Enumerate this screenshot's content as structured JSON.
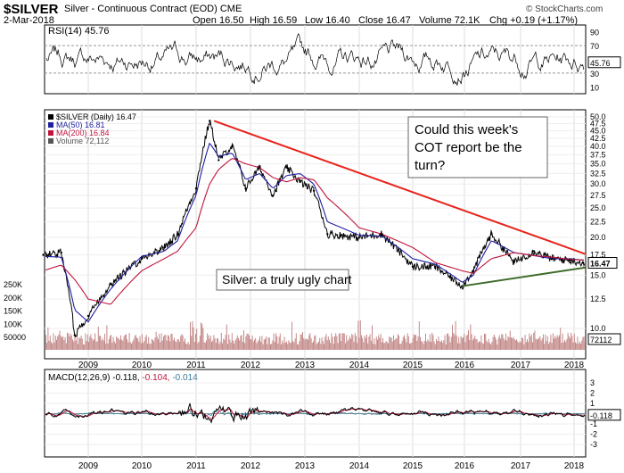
{
  "header": {
    "symbol": "$SILVER",
    "name": "Silver - Continuous Contract (EOD)",
    "exchange": "CME",
    "date": "2-Mar-2018",
    "open_label": "Open",
    "open": "16.50",
    "high_label": "High",
    "high": "16.59",
    "low_label": "Low",
    "low": "16.40",
    "close_label": "Close",
    "close": "16.47",
    "volume_label": "Volume",
    "volume": "72.1K",
    "chg_label": "Chg",
    "chg": "+0.19 (+1.17%)",
    "watermark": "© StockCharts.com"
  },
  "rsi": {
    "label": "RSI(14) 45.76",
    "value_box": "45.76",
    "ticks": [
      "90",
      "70",
      "50",
      "30",
      "10"
    ]
  },
  "main": {
    "legend": [
      {
        "text": "$SILVER (Daily) 16.47",
        "color": "#000000"
      },
      {
        "text": "MA(50) 16.81",
        "color": "#1f1fa0"
      },
      {
        "text": "MA(200) 16.84",
        "color": "#c0143c"
      },
      {
        "text": "Volume 72,112",
        "color": "#555555"
      }
    ],
    "price_ticks": [
      "50.0",
      "47.5",
      "45.0",
      "42.5",
      "40.0",
      "37.5",
      "35.0",
      "32.5",
      "30.0",
      "27.5",
      "25.0",
      "22.5",
      "20.0",
      "17.5",
      "15.0",
      "12.5",
      "10.0"
    ],
    "price_box": "16.47",
    "volume_ticks": [
      "250K",
      "200K",
      "150K",
      "100K",
      "50000"
    ],
    "volume_box": "72112",
    "annotation_1": "Could this week's COT report be the turn?",
    "annotation_2": "Silver: a truly ugly chart",
    "x_labels": [
      "2009",
      "2010",
      "2011",
      "2012",
      "2013",
      "2014",
      "2015",
      "2016",
      "2017",
      "2018"
    ]
  },
  "macd": {
    "label_prefix": "MACD(12,26,9)",
    "v1": "-0.118",
    "v2": "-0.104",
    "v3": "-0.014",
    "value_box": "-0.118",
    "ticks": [
      "3",
      "2",
      "1",
      "0",
      "-1",
      "-2",
      "-3"
    ]
  },
  "colors": {
    "price": "#000000",
    "ma50": "#1f1fa0",
    "ma200": "#c0143c",
    "volume": "#c48a8a",
    "resistance": "#e8231a",
    "support": "#3d6b2a",
    "macd": "#000000",
    "signal": "#c0143c",
    "histogram": "#3a7a9a"
  },
  "chart_data": {
    "type": "line",
    "title": "$SILVER Silver - Continuous Contract (EOD) CME",
    "x": [
      "2008-03",
      "2008-07",
      "2008-10",
      "2009-01",
      "2009-06",
      "2010-01",
      "2010-06",
      "2010-09",
      "2011-01",
      "2011-04",
      "2011-06",
      "2011-09",
      "2011-12",
      "2012-03",
      "2012-06",
      "2012-09",
      "2012-12",
      "2013-03",
      "2013-06",
      "2014-01",
      "2014-06",
      "2015-01",
      "2015-06",
      "2015-12",
      "2016-03",
      "2016-07",
      "2016-12",
      "2017-04",
      "2017-08",
      "2017-12",
      "2018-03"
    ],
    "series": [
      {
        "name": "$SILVER (Daily)",
        "values": [
          17.5,
          17.8,
          9.5,
          11.0,
          14.0,
          17.0,
          18.5,
          20.5,
          29.0,
          48.5,
          36.0,
          40.0,
          29.0,
          34.0,
          27.5,
          34.0,
          30.5,
          28.5,
          20.5,
          20.0,
          20.5,
          16.0,
          16.0,
          13.8,
          15.5,
          20.5,
          16.5,
          18.0,
          17.0,
          16.8,
          16.47
        ]
      },
      {
        "name": "MA(50)",
        "values": [
          17.3,
          17.2,
          11.5,
          10.5,
          13.5,
          17.3,
          18.0,
          19.5,
          27.5,
          41.0,
          37.0,
          38.0,
          31.0,
          32.5,
          29.0,
          32.0,
          32.5,
          30.0,
          22.5,
          20.3,
          20.2,
          17.0,
          16.3,
          14.2,
          15.0,
          19.5,
          17.8,
          17.4,
          17.0,
          17.0,
          16.81
        ]
      },
      {
        "name": "MA(200)",
        "values": [
          15.5,
          16.2,
          14.5,
          12.5,
          12.0,
          15.5,
          17.0,
          18.0,
          21.5,
          30.0,
          33.5,
          36.5,
          35.0,
          34.0,
          31.5,
          30.5,
          31.5,
          31.0,
          27.0,
          21.5,
          20.5,
          18.5,
          16.5,
          15.5,
          15.2,
          17.0,
          17.8,
          17.4,
          17.2,
          16.9,
          16.84
        ]
      }
    ],
    "annotations": [
      "Could this week's COT report be the turn?",
      "Silver: a truly ugly chart"
    ]
  }
}
